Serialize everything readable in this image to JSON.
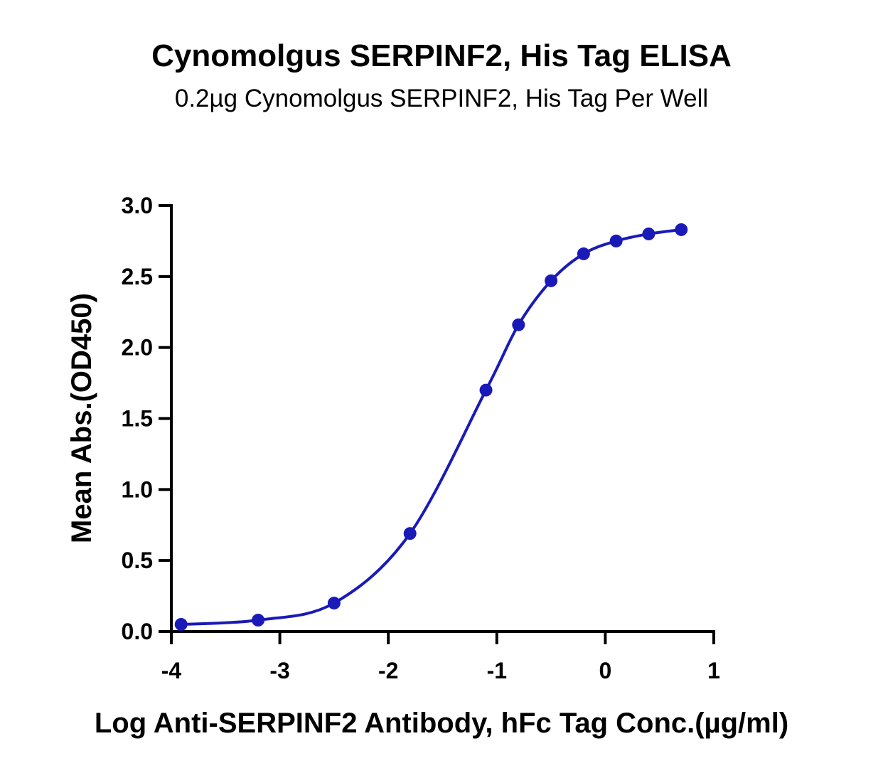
{
  "chart_data": {
    "type": "scatter",
    "title": "Cynomolgus SERPINF2, His Tag ELISA",
    "subtitle": "0.2µg Cynomolgus SERPINF2, His Tag Per Well",
    "xlabel": "Log Anti-SERPINF2 Antibody, hFc Tag Conc.(µg/ml)",
    "ylabel": "Mean Abs.(OD450)",
    "xlim": [
      -4,
      1
    ],
    "ylim": [
      0,
      3
    ],
    "x_ticks": [
      "-4",
      "-3",
      "-2",
      "-1",
      "0",
      "1"
    ],
    "x_tick_values": [
      -4,
      -3,
      -2,
      -1,
      0,
      1
    ],
    "y_ticks": [
      "0.0",
      "0.5",
      "1.0",
      "1.5",
      "2.0",
      "2.5",
      "3.0"
    ],
    "y_tick_values": [
      0,
      0.5,
      1,
      1.5,
      2,
      2.5,
      3
    ],
    "grid": false,
    "legend": "none",
    "fit": "four-parameter logistic curve",
    "color": "#1a1ab8",
    "series": [
      {
        "x": [
          -3.91,
          -3.2,
          -2.5,
          -1.8,
          -1.1,
          -0.8,
          -0.5,
          -0.2,
          0.1,
          0.4,
          0.7
        ],
        "y": [
          0.05,
          0.08,
          0.2,
          0.69,
          1.7,
          2.16,
          2.47,
          2.66,
          2.75,
          2.8,
          2.83
        ]
      }
    ]
  }
}
